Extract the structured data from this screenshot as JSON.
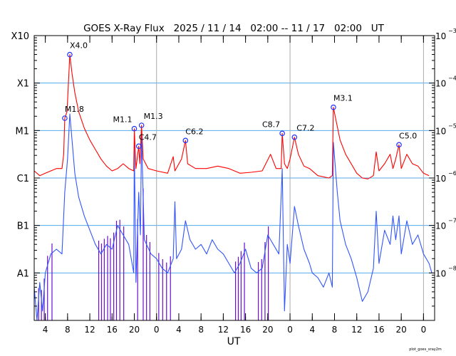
{
  "chart_data": {
    "type": "line",
    "title": "GOES X-Ray Flux   2025 / 11 / 14   02:00 -- 11 / 17   02:00   UT",
    "xlabel": "UT",
    "footer": "plot_goes_xray2m",
    "x_unit": "hours since 2025-11-14 02:00 UT",
    "xlim": [
      0,
      72
    ],
    "ylim_log10": [
      -9,
      -3
    ],
    "y_scale": "log",
    "grid": true,
    "day_boundaries": [
      22,
      46,
      70
    ],
    "x_ticks": [
      {
        "h": 2,
        "label": "4"
      },
      {
        "h": 6,
        "label": "8"
      },
      {
        "h": 10,
        "label": "12"
      },
      {
        "h": 14,
        "label": "16"
      },
      {
        "h": 18,
        "label": "20"
      },
      {
        "h": 22,
        "label": "0"
      },
      {
        "h": 26,
        "label": "4"
      },
      {
        "h": 30,
        "label": "8"
      },
      {
        "h": 34,
        "label": "12"
      },
      {
        "h": 38,
        "label": "16"
      },
      {
        "h": 42,
        "label": "20"
      },
      {
        "h": 46,
        "label": "0"
      },
      {
        "h": 50,
        "label": "4"
      },
      {
        "h": 54,
        "label": "8"
      },
      {
        "h": 58,
        "label": "12"
      },
      {
        "h": 62,
        "label": "16"
      },
      {
        "h": 66,
        "label": "20"
      },
      {
        "h": 70,
        "label": "0"
      }
    ],
    "left_ticks": [
      {
        "log": -3,
        "label": "X10"
      },
      {
        "log": -4,
        "label": "X1"
      },
      {
        "log": -5,
        "label": "M1"
      },
      {
        "log": -6,
        "label": "C1"
      },
      {
        "log": -7,
        "label": "B1"
      },
      {
        "log": -8,
        "label": "A1"
      }
    ],
    "right_ticks": [
      {
        "log": -3,
        "base": "10",
        "exp": "−3"
      },
      {
        "log": -4,
        "base": "10",
        "exp": "−4"
      },
      {
        "log": -5,
        "base": "10",
        "exp": "−5"
      },
      {
        "log": -6,
        "base": "10",
        "exp": "−6"
      },
      {
        "log": -7,
        "base": "10",
        "exp": "−7"
      },
      {
        "log": -8,
        "base": "10",
        "exp": "−8"
      }
    ],
    "class_gridlines_log": [
      -4,
      -5,
      -6,
      -7,
      -8
    ],
    "colors": {
      "long": "#ff0000",
      "short": "#3355ff",
      "short_flagged": "#6a0dcc",
      "grid": "#55aaee",
      "day": "#aaaaaa",
      "marker": "#2233ff"
    },
    "series": [
      {
        "name": "long (1-8 Å)",
        "color": "#ff0000",
        "points": [
          [
            0,
            -5.85
          ],
          [
            1,
            -5.95
          ],
          [
            2,
            -5.9
          ],
          [
            3,
            -5.85
          ],
          [
            4,
            -5.8
          ],
          [
            5,
            -5.8
          ],
          [
            5.3,
            -5.5
          ],
          [
            5.5,
            -4.74
          ],
          [
            5.9,
            -4.6
          ],
          [
            6.4,
            -3.4
          ],
          [
            6.8,
            -3.8
          ],
          [
            7.3,
            -4.2
          ],
          [
            8,
            -4.6
          ],
          [
            9,
            -4.95
          ],
          [
            10,
            -5.2
          ],
          [
            11,
            -5.4
          ],
          [
            12,
            -5.6
          ],
          [
            13,
            -5.75
          ],
          [
            14,
            -5.85
          ],
          [
            15,
            -5.8
          ],
          [
            16,
            -5.7
          ],
          [
            17,
            -5.8
          ],
          [
            17.9,
            -5.85
          ],
          [
            18.0,
            -4.96
          ],
          [
            18.3,
            -5.8
          ],
          [
            18.8,
            -5.33
          ],
          [
            19.0,
            -5.7
          ],
          [
            19.3,
            -4.89
          ],
          [
            19.6,
            -5.6
          ],
          [
            20.5,
            -5.8
          ],
          [
            22,
            -5.85
          ],
          [
            24,
            -5.9
          ],
          [
            25,
            -5.55
          ],
          [
            25.3,
            -5.85
          ],
          [
            26.5,
            -5.6
          ],
          [
            27.2,
            -5.21
          ],
          [
            27.6,
            -5.7
          ],
          [
            29,
            -5.8
          ],
          [
            31,
            -5.8
          ],
          [
            33,
            -5.75
          ],
          [
            35,
            -5.8
          ],
          [
            37,
            -5.9
          ],
          [
            39,
            -5.88
          ],
          [
            41,
            -5.85
          ],
          [
            42.5,
            -5.5
          ],
          [
            43.5,
            -5.8
          ],
          [
            44.4,
            -5.8
          ],
          [
            44.6,
            -5.06
          ],
          [
            45,
            -5.7
          ],
          [
            45.5,
            -5.8
          ],
          [
            46,
            -5.6
          ],
          [
            46.8,
            -5.14
          ],
          [
            47.5,
            -5.5
          ],
          [
            48.5,
            -5.75
          ],
          [
            49.5,
            -5.8
          ],
          [
            51,
            -5.95
          ],
          [
            53,
            -6.0
          ],
          [
            53.6,
            -5.95
          ],
          [
            53.8,
            -4.51
          ],
          [
            54.3,
            -4.8
          ],
          [
            55,
            -5.2
          ],
          [
            56,
            -5.5
          ],
          [
            57,
            -5.7
          ],
          [
            58,
            -5.9
          ],
          [
            59,
            -6.0
          ],
          [
            60,
            -6.02
          ],
          [
            61,
            -5.95
          ],
          [
            61.5,
            -5.45
          ],
          [
            62,
            -5.85
          ],
          [
            63,
            -5.7
          ],
          [
            64,
            -5.5
          ],
          [
            64.5,
            -5.8
          ],
          [
            65,
            -5.6
          ],
          [
            65.6,
            -5.3
          ],
          [
            66,
            -5.8
          ],
          [
            67,
            -5.5
          ],
          [
            68,
            -5.7
          ],
          [
            69,
            -5.75
          ],
          [
            70,
            -5.9
          ],
          [
            71,
            -5.95
          ]
        ]
      },
      {
        "name": "short (0.5-4 Å)",
        "color": "#3355ff",
        "points": [
          [
            0,
            -8.3
          ],
          [
            0.5,
            -9
          ],
          [
            1,
            -8.2
          ],
          [
            1.5,
            -8.8
          ],
          [
            2,
            -8.0
          ],
          [
            3,
            -7.6
          ],
          [
            4,
            -7.5
          ],
          [
            5,
            -7.6
          ],
          [
            5.5,
            -6.3
          ],
          [
            6,
            -5.6
          ],
          [
            6.4,
            -4.65
          ],
          [
            6.8,
            -5.2
          ],
          [
            7.3,
            -5.9
          ],
          [
            8,
            -6.4
          ],
          [
            9,
            -6.8
          ],
          [
            10,
            -7.1
          ],
          [
            11,
            -7.4
          ],
          [
            12,
            -7.6
          ],
          [
            13,
            -7.4
          ],
          [
            14,
            -7.5
          ],
          [
            15,
            -7.0
          ],
          [
            16,
            -7.2
          ],
          [
            17,
            -7.4
          ],
          [
            17.9,
            -8.0
          ],
          [
            18.0,
            -5.3
          ],
          [
            18.3,
            -8.2
          ],
          [
            18.8,
            -6.3
          ],
          [
            19.1,
            -7.2
          ],
          [
            19.3,
            -5.1
          ],
          [
            19.8,
            -7.3
          ],
          [
            21,
            -7.6
          ],
          [
            22,
            -7.7
          ],
          [
            23,
            -7.9
          ],
          [
            24,
            -8.0
          ],
          [
            25,
            -7.7
          ],
          [
            25.3,
            -6.5
          ],
          [
            25.6,
            -7.7
          ],
          [
            26.5,
            -7.5
          ],
          [
            27.2,
            -6.9
          ],
          [
            28,
            -7.3
          ],
          [
            29,
            -7.5
          ],
          [
            30,
            -7.4
          ],
          [
            31,
            -7.6
          ],
          [
            32,
            -7.3
          ],
          [
            33,
            -7.5
          ],
          [
            34,
            -7.6
          ],
          [
            35,
            -7.8
          ],
          [
            36,
            -8.0
          ],
          [
            37,
            -7.8
          ],
          [
            38,
            -7.5
          ],
          [
            39,
            -7.9
          ],
          [
            40,
            -8.0
          ],
          [
            41,
            -7.9
          ],
          [
            42,
            -7.2
          ],
          [
            43,
            -7.4
          ],
          [
            44,
            -7.6
          ],
          [
            44.6,
            -5.8
          ],
          [
            45,
            -8.8
          ],
          [
            45.5,
            -7.4
          ],
          [
            46,
            -7.8
          ],
          [
            46.8,
            -6.6
          ],
          [
            47.5,
            -7.0
          ],
          [
            48.5,
            -7.5
          ],
          [
            49.5,
            -7.8
          ],
          [
            50,
            -8.0
          ],
          [
            51,
            -8.1
          ],
          [
            52,
            -8.3
          ],
          [
            53,
            -8.0
          ],
          [
            53.6,
            -8.3
          ],
          [
            53.8,
            -5.25
          ],
          [
            54.5,
            -6.3
          ],
          [
            55,
            -6.9
          ],
          [
            56,
            -7.4
          ],
          [
            57,
            -7.7
          ],
          [
            58,
            -8.1
          ],
          [
            59,
            -8.6
          ],
          [
            60,
            -8.4
          ],
          [
            61,
            -7.9
          ],
          [
            61.5,
            -6.7
          ],
          [
            62,
            -7.8
          ],
          [
            63,
            -7.1
          ],
          [
            64,
            -7.4
          ],
          [
            64.5,
            -6.8
          ],
          [
            65,
            -7.3
          ],
          [
            65.6,
            -6.8
          ],
          [
            66,
            -7.6
          ],
          [
            67,
            -6.9
          ],
          [
            68,
            -7.4
          ],
          [
            69,
            -7.2
          ],
          [
            70,
            -7.6
          ],
          [
            71,
            -7.8
          ],
          [
            71.5,
            -8.0
          ]
        ]
      }
    ],
    "short_flagged_dropout_hours": [
      0.8,
      1.3,
      1.8,
      2.4,
      3.2,
      11.6,
      12.1,
      12.6,
      13.2,
      13.7,
      14.3,
      14.8,
      15.4,
      16.1,
      18.6,
      19.6,
      20.2,
      20.8,
      22.4,
      23.1,
      23.8,
      24.5,
      36.2,
      36.7,
      37.2,
      37.8,
      40.3,
      40.9,
      41.5,
      42.1
    ],
    "flares": [
      {
        "label": "M1.8",
        "h": 5.5,
        "log": -4.74
      },
      {
        "label": "X4.0",
        "h": 6.4,
        "log": -3.4
      },
      {
        "label": "M1.1",
        "h": 18.0,
        "log": -4.96
      },
      {
        "label": "C4.7",
        "h": 18.8,
        "log": -5.33
      },
      {
        "label": "M1.3",
        "h": 19.3,
        "log": -4.89
      },
      {
        "label": "C6.2",
        "h": 27.2,
        "log": -5.21
      },
      {
        "label": "C8.7",
        "h": 44.6,
        "log": -5.06
      },
      {
        "label": "C7.2",
        "h": 46.8,
        "log": -5.14
      },
      {
        "label": "M3.1",
        "h": 53.8,
        "log": -4.51
      },
      {
        "label": "C5.0",
        "h": 65.6,
        "log": -5.3
      }
    ]
  }
}
